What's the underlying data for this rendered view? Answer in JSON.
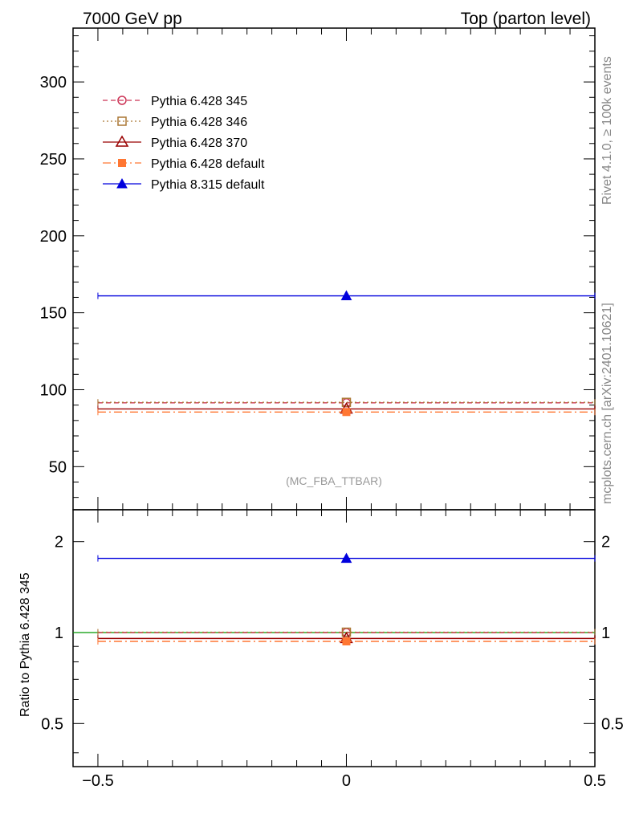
{
  "header": {
    "left": "7000 GeV pp",
    "right": "Top (parton level)"
  },
  "side_labels": {
    "rivet": "Rivet 4.1.0, ≥ 100k events",
    "mcplots": "mcplots.cern.ch [arXiv:2401.10621]"
  },
  "analysis_tag": "(MC_FBA_TTBAR)",
  "colors": {
    "p345": "#cc3355",
    "p346": "#aa7733",
    "p370": "#990000",
    "p6def": "#ff7733",
    "p8def": "#0000dd"
  },
  "chart_data": [
    {
      "type": "line",
      "panel": "main",
      "xlim": [
        -0.55,
        0.5
      ],
      "ylim": [
        22,
        335
      ],
      "x_range": [
        -0.5,
        0.5
      ],
      "x_center": 0,
      "yticks": [
        50,
        100,
        150,
        200,
        250,
        300
      ],
      "ytick_labels": [
        "50",
        "100",
        "150",
        "200",
        "250",
        "300"
      ],
      "legend_position": "top-left",
      "series": [
        {
          "key": "p345",
          "name": "Pythia 6.428 345",
          "value": 91.5,
          "marker": "open-circle",
          "dash": "dashed"
        },
        {
          "key": "p346",
          "name": "Pythia 6.428 346",
          "value": 91.8,
          "marker": "open-square",
          "dash": "dotted"
        },
        {
          "key": "p370",
          "name": "Pythia 6.428 370",
          "value": 87.5,
          "marker": "open-triangle",
          "dash": "solid"
        },
        {
          "key": "p6def",
          "name": "Pythia 6.428 default",
          "value": 85.5,
          "marker": "filled-square",
          "dash": "dashdot"
        },
        {
          "key": "p8def",
          "name": "Pythia 8.315 default",
          "value": 161,
          "marker": "filled-triangle",
          "dash": "solid"
        }
      ]
    },
    {
      "type": "line",
      "panel": "ratio",
      "ylabel": "Ratio to Pythia 6.428 345",
      "xlim": [
        -0.55,
        0.5
      ],
      "xticks": [
        -0.5,
        0,
        0.5
      ],
      "xtick_labels": [
        "−0.5",
        "0",
        "0.5"
      ],
      "ylim_log": [
        0.36,
        2.55
      ],
      "yticks": [
        0.5,
        1,
        2
      ],
      "ytick_labels": [
        "0.5",
        "1",
        "2"
      ],
      "reference_line": 1.0,
      "series": [
        {
          "key": "p345",
          "name": "Pythia 6.428 345",
          "value": 1.0
        },
        {
          "key": "p346",
          "name": "Pythia 6.428 346",
          "value": 1.003
        },
        {
          "key": "p370",
          "name": "Pythia 6.428 370",
          "value": 0.956
        },
        {
          "key": "p6def",
          "name": "Pythia 6.428 default",
          "value": 0.935
        },
        {
          "key": "p8def",
          "name": "Pythia 8.315 default",
          "value": 1.76
        }
      ]
    }
  ]
}
